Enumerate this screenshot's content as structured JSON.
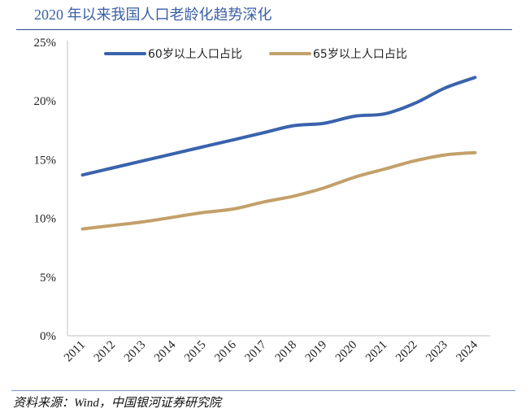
{
  "title": "2020 年以来我国人口老龄化趋势深化",
  "source": "资料来源：Wind，中国银河证券研究院",
  "chart_data": {
    "type": "line",
    "x": [
      "2011",
      "2012",
      "2013",
      "2014",
      "2015",
      "2016",
      "2017",
      "2018",
      "2019",
      "2020",
      "2021",
      "2022",
      "2023",
      "2024"
    ],
    "ylim": [
      0,
      25
    ],
    "yticks": [
      "0%",
      "5%",
      "10%",
      "15%",
      "20%",
      "25%"
    ],
    "grid": false,
    "legend_position": "top",
    "series": [
      {
        "name": "60岁以上人口占比",
        "color": "#3a63ad",
        "values": [
          13.7,
          14.3,
          14.9,
          15.5,
          16.1,
          16.7,
          17.3,
          17.9,
          18.1,
          18.7,
          18.9,
          19.8,
          21.1,
          22.0
        ]
      },
      {
        "name": "65岁以上人口占比",
        "color": "#c3a06a",
        "values": [
          9.1,
          9.4,
          9.7,
          10.1,
          10.5,
          10.8,
          11.4,
          11.9,
          12.6,
          13.5,
          14.2,
          14.9,
          15.4,
          15.6
        ]
      }
    ]
  }
}
